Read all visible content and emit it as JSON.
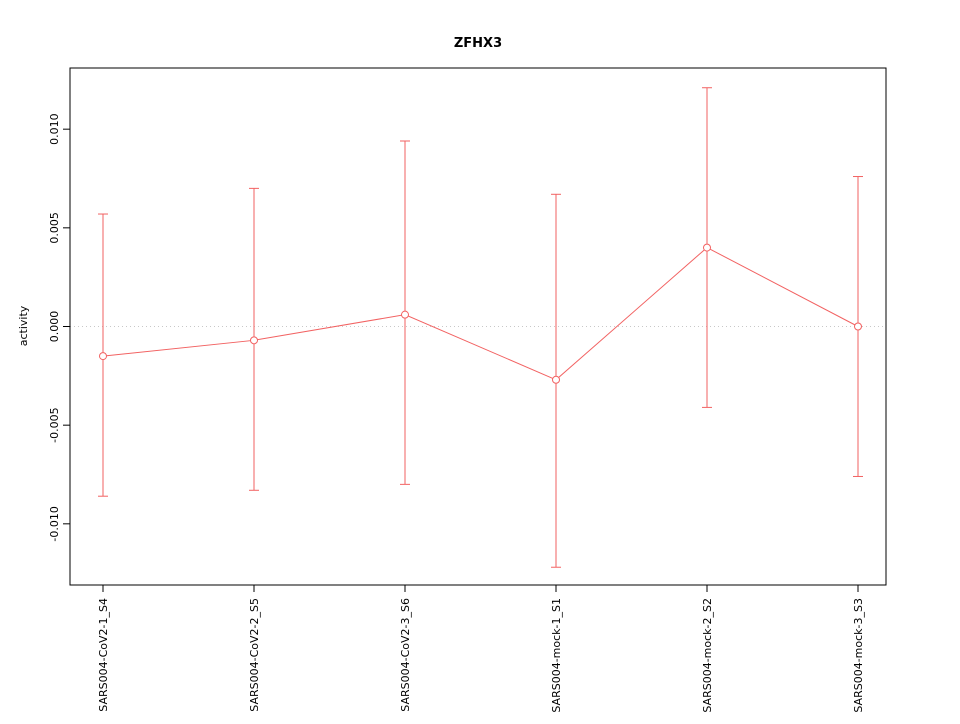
{
  "chart_data": {
    "type": "line",
    "title": "ZFHX3",
    "xlabel": "",
    "ylabel": "activity",
    "categories": [
      "SARS004-CoV2-1_S4",
      "SARS004-CoV2-2_S5",
      "SARS004-CoV2-3_S6",
      "SARS004-mock-1_S1",
      "SARS004-mock-2_S2",
      "SARS004-mock-3_S3"
    ],
    "series": [
      {
        "name": "activity",
        "values": [
          -0.0015,
          -0.0007,
          0.0006,
          -0.0027,
          0.004,
          0.0
        ],
        "upper": [
          0.0057,
          0.007,
          0.0094,
          0.0067,
          0.0121,
          0.0076
        ],
        "lower": [
          -0.0086,
          -0.0083,
          -0.008,
          -0.0122,
          -0.0041,
          -0.0076
        ]
      }
    ],
    "yticks": [
      -0.01,
      -0.005,
      0.0,
      0.005,
      0.01
    ],
    "ytick_labels": [
      "-0.010",
      "-0.005",
      "0.000",
      "0.005",
      "0.010"
    ],
    "ylim": [
      -0.0131,
      0.0131
    ],
    "grid": "horizontal dotted line at y=0",
    "legend": "none",
    "line_color": "#f26262",
    "gridline_color": "#c8c8c8",
    "box_color": "#000000"
  }
}
